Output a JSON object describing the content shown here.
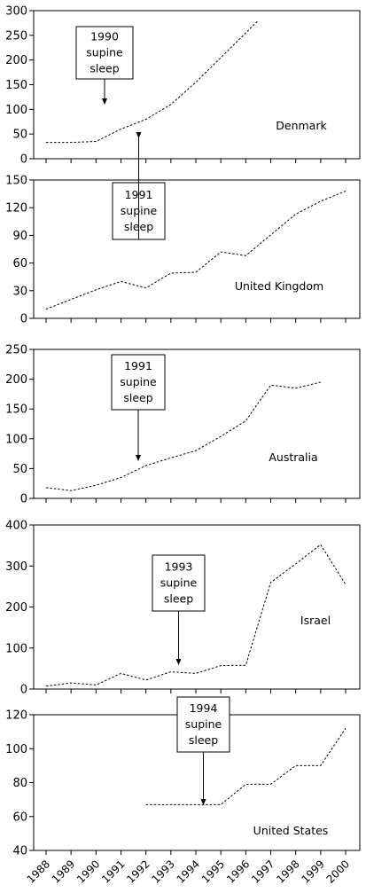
{
  "chart_data": {
    "type": "line",
    "x_ticks": [
      "1988",
      "1989",
      "1990",
      "1991",
      "1992",
      "1993",
      "1994",
      "1995",
      "1996",
      "1997",
      "1998",
      "1999",
      "2000"
    ],
    "panels": [
      {
        "name": "Denmark",
        "ylim": [
          0,
          300
        ],
        "yticks": [
          0,
          50,
          100,
          150,
          200,
          250,
          300
        ],
        "points": [
          [
            1988,
            33
          ],
          [
            1989,
            33
          ],
          [
            1990,
            35
          ],
          [
            1991,
            60
          ],
          [
            1992,
            80
          ],
          [
            1993,
            110
          ],
          [
            1994,
            155
          ],
          [
            1995,
            205
          ],
          [
            1996,
            255
          ],
          [
            1996.5,
            280
          ]
        ],
        "annotation": {
          "lines": [
            "1990",
            "supine",
            "sleep"
          ],
          "year": 1990
        }
      },
      {
        "name": "United Kingdom",
        "ylim": [
          0,
          150
        ],
        "yticks": [
          0,
          30,
          60,
          90,
          120,
          150
        ],
        "points": [
          [
            1988,
            10
          ],
          [
            1990,
            31
          ],
          [
            1991,
            40
          ],
          [
            1992,
            33
          ],
          [
            1993,
            49
          ],
          [
            1994,
            50
          ],
          [
            1995,
            72
          ],
          [
            1996,
            68
          ],
          [
            1998,
            113
          ],
          [
            1999,
            127
          ],
          [
            2000,
            138
          ]
        ],
        "annotation": {
          "lines": [
            "1991",
            "supine",
            "sleep"
          ],
          "year": 1991
        }
      },
      {
        "name": "Australia",
        "ylim": [
          0,
          250
        ],
        "yticks": [
          0,
          50,
          100,
          150,
          200,
          250
        ],
        "points": [
          [
            1988,
            18
          ],
          [
            1989,
            13
          ],
          [
            1990,
            22
          ],
          [
            1991,
            35
          ],
          [
            1992,
            55
          ],
          [
            1993,
            68
          ],
          [
            1994,
            80
          ],
          [
            1995,
            104
          ],
          [
            1996,
            130
          ],
          [
            1997,
            190
          ],
          [
            1998,
            185
          ],
          [
            1999,
            195
          ]
        ],
        "annotation": {
          "lines": [
            "1991",
            "supine",
            "sleep"
          ],
          "year": 1991
        }
      },
      {
        "name": "Israel",
        "ylim": [
          0,
          400
        ],
        "yticks": [
          0,
          100,
          200,
          300,
          400
        ],
        "points": [
          [
            1988,
            7
          ],
          [
            1989,
            15
          ],
          [
            1990,
            10
          ],
          [
            1991,
            38
          ],
          [
            1992,
            22
          ],
          [
            1993,
            42
          ],
          [
            1994,
            38
          ],
          [
            1995,
            57
          ],
          [
            1996,
            58
          ],
          [
            1997,
            260
          ],
          [
            1998,
            305
          ],
          [
            1999,
            352
          ],
          [
            2000,
            255
          ]
        ],
        "annotation": {
          "lines": [
            "1993",
            "supine",
            "sleep"
          ],
          "year": 1993
        }
      },
      {
        "name": "United States",
        "ylim": [
          40,
          120
        ],
        "yticks": [
          40,
          60,
          80,
          100,
          120
        ],
        "points": [
          [
            1992,
            67
          ],
          [
            1995,
            67
          ],
          [
            1996,
            79
          ],
          [
            1997,
            79
          ],
          [
            1998,
            90
          ],
          [
            1999,
            90
          ],
          [
            2000,
            112
          ]
        ],
        "annotation": {
          "lines": [
            "1994",
            "supine",
            "sleep"
          ],
          "year": 1994
        }
      }
    ]
  }
}
